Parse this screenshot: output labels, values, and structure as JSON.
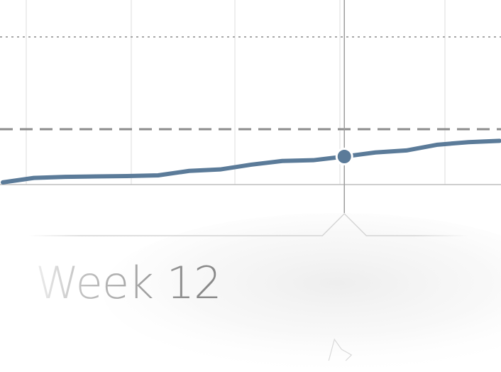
{
  "chart_data": {
    "type": "line",
    "x": [
      1,
      2,
      3,
      4,
      5,
      6,
      7,
      8,
      9,
      10,
      11,
      12,
      13,
      14,
      15,
      16,
      17
    ],
    "series": [
      {
        "values": [
          1.2,
          3.6,
          4.2,
          4.4,
          4.6,
          5.0,
          7.4,
          8.2,
          10.8,
          12.8,
          13.2,
          15.2,
          17.4,
          18.5,
          21.6,
          23.0,
          23.7
        ]
      }
    ],
    "ylim": [
      0,
      100
    ],
    "reference_lines": [
      {
        "style": "dashed",
        "value": 30
      },
      {
        "style": "dotted",
        "value": 80
      }
    ],
    "grid": true,
    "highlight": {
      "x": 12,
      "label": "Week 12"
    },
    "colors": {
      "line": "#5b7b99",
      "marker": "#5b7b99",
      "grid": "#e3e3e3",
      "baseline": "#bdbdbd",
      "cursor": "#9e9e9e",
      "dashed_ref": "#8c8c8c",
      "dotted_ref": "#8c8c8c"
    }
  }
}
